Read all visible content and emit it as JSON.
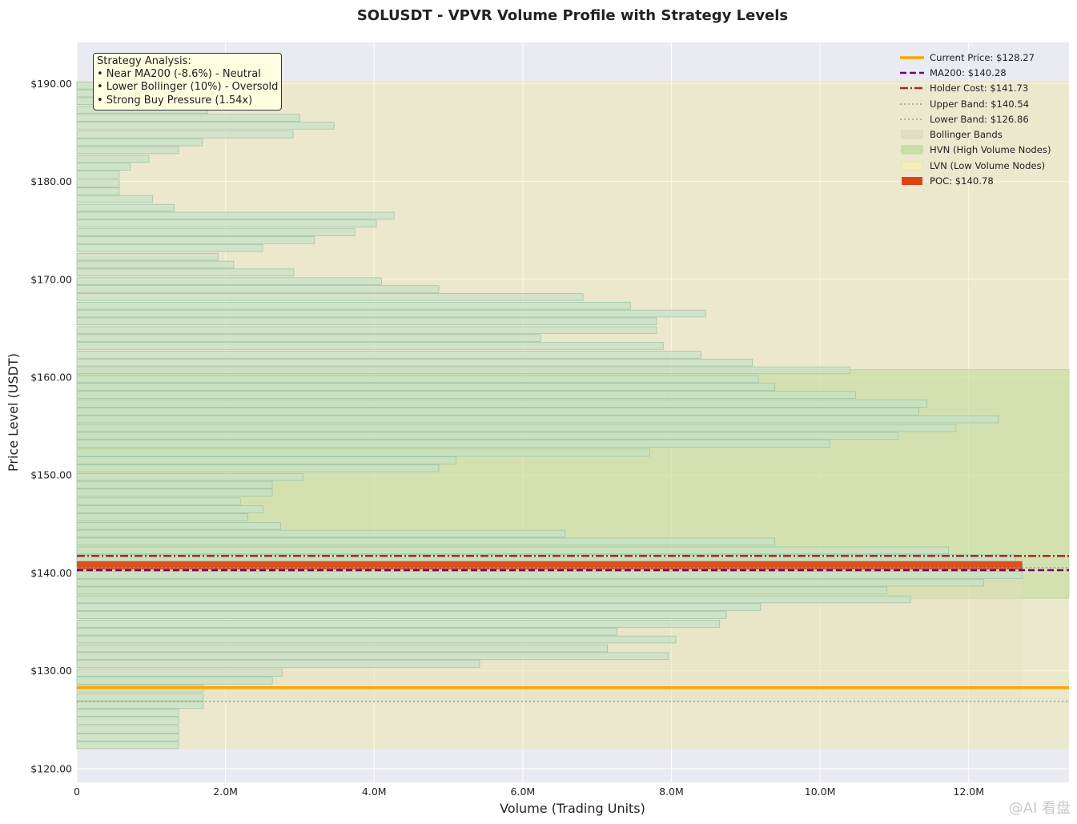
{
  "chart_data": {
    "type": "bar",
    "orientation": "horizontal",
    "title": "SOLUSDT - VPVR Volume Profile with Strategy Levels",
    "xlabel": "Volume (Trading Units)",
    "ylabel": "Price Level (USDT)",
    "xlim": [
      0,
      13350000
    ],
    "ylim": [
      118.6,
      194.2
    ],
    "x_ticks": [
      0,
      2000000,
      4000000,
      6000000,
      8000000,
      10000000,
      12000000
    ],
    "x_tick_labels": [
      "0",
      "2.0M",
      "4.0M",
      "6.0M",
      "8.0M",
      "10.0M",
      "12.0M"
    ],
    "y_ticks": [
      120,
      130,
      140,
      150,
      160,
      170,
      180,
      190
    ],
    "y_tick_labels": [
      "$120.00",
      "$130.00",
      "$140.00",
      "$150.00",
      "$160.00",
      "$170.00",
      "$180.00",
      "$190.00"
    ],
    "grid": true,
    "legend_position": "top-right",
    "bin_width": 0.83,
    "price_levels": [
      122.4,
      123.2,
      124.0,
      124.9,
      125.7,
      126.5,
      127.3,
      128.2,
      129.0,
      129.8,
      130.7,
      131.5,
      132.3,
      133.2,
      134.0,
      134.8,
      135.7,
      136.5,
      137.3,
      138.2,
      139.0,
      139.8,
      140.7,
      141.5,
      142.3,
      143.2,
      144.0,
      144.8,
      145.7,
      146.5,
      147.3,
      148.2,
      149.0,
      149.8,
      150.7,
      151.5,
      152.3,
      153.2,
      154.0,
      154.8,
      155.7,
      156.5,
      157.3,
      158.2,
      159.0,
      159.8,
      160.7,
      161.5,
      162.3,
      163.2,
      164.0,
      164.8,
      165.7,
      166.5,
      167.3,
      168.2,
      169.0,
      169.8,
      170.7,
      171.5,
      172.3,
      173.2,
      174.0,
      174.8,
      175.7,
      176.5,
      177.3,
      178.2,
      179.0,
      179.8,
      180.7,
      181.5,
      182.3,
      183.2,
      184.0,
      184.8,
      185.7,
      186.5,
      187.3,
      188.2,
      189.0,
      189.8
    ],
    "volumes": [
      1370000,
      1370000,
      1370000,
      1370000,
      1370000,
      1700000,
      1700000,
      1700000,
      2630000,
      2760000,
      5420000,
      7960000,
      7140000,
      8060000,
      7270000,
      8650000,
      8740000,
      9200000,
      11220000,
      10900000,
      12200000,
      12720000,
      12720000,
      12630000,
      11730000,
      9390000,
      6570000,
      2740000,
      2300000,
      2510000,
      2200000,
      2630000,
      2630000,
      3040000,
      4870000,
      5100000,
      7710000,
      10130000,
      11050000,
      11830000,
      12400000,
      11330000,
      11440000,
      10480000,
      9390000,
      9170000,
      10400000,
      9090000,
      8400000,
      7890000,
      6240000,
      7800000,
      7800000,
      8460000,
      7450000,
      6810000,
      4870000,
      4100000,
      2920000,
      2110000,
      1900000,
      2500000,
      3200000,
      3740000,
      4030000,
      4270000,
      1310000,
      1020000,
      570000,
      570000,
      570000,
      720000,
      970000,
      1370000,
      1690000,
      2910000,
      3460000,
      3000000,
      1760000,
      1760000,
      1760000,
      1760000
    ],
    "levels": [
      {
        "name": "Current Price",
        "value": 128.27,
        "label": "Current Price: $128.27",
        "color": "#ffa500",
        "style": "solid"
      },
      {
        "name": "MA200",
        "value": 140.28,
        "label": "MA200: $140.28",
        "color": "#6a0a6e",
        "style": "dashed"
      },
      {
        "name": "Holder Cost",
        "value": 141.73,
        "label": "Holder Cost: $141.73",
        "color": "#a52a2a",
        "style": "dashdot"
      },
      {
        "name": "Upper Band",
        "value": 140.54,
        "label": "Upper Band: $140.54",
        "color": "#999999",
        "style": "dotted"
      },
      {
        "name": "Lower Band",
        "value": 126.86,
        "label": "Lower Band: $126.86",
        "color": "#999999",
        "style": "dotted"
      }
    ],
    "bollinger_band": {
      "label": "Bollinger Bands",
      "low": 126.86,
      "high": 140.54,
      "color": "#e6e0c0"
    },
    "zones": [
      {
        "label": "HVN (High Volume Nodes)",
        "low": 137.4,
        "high": 160.8,
        "color": "#b5d68a"
      },
      {
        "label": "LVN (Low Volume Nodes)",
        "low": 122.0,
        "high": 190.3,
        "color": "#f0e68c"
      }
    ],
    "poc": {
      "label": "POC: $140.78",
      "value": 140.78,
      "color": "#dd4411"
    },
    "annotation": {
      "title": "Strategy Analysis:",
      "lines": [
        "• Near MA200 (-8.6%) - Neutral",
        "• Lower Bollinger (10%) - Oversold",
        "• Strong Buy Pressure (1.54x)"
      ]
    }
  },
  "watermark": "@AI 看盘"
}
